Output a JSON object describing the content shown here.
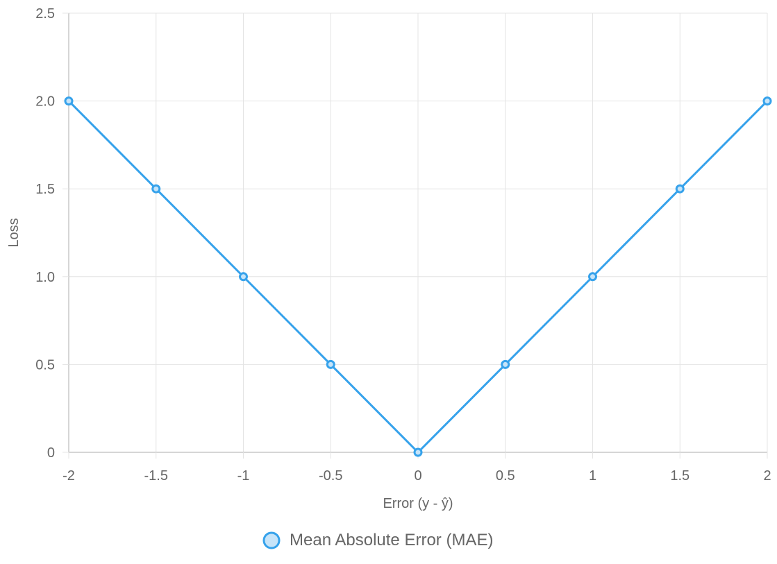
{
  "chart_data": {
    "type": "line",
    "title": "",
    "xlabel": "Error (y - ŷ)",
    "ylabel": "Loss",
    "x": [
      -2,
      -1.5,
      -1,
      -0.5,
      0,
      0.5,
      1,
      1.5,
      2
    ],
    "x_tick_labels": [
      "-2",
      "-1.5",
      "-1",
      "-0.5",
      "0",
      "0.5",
      "1",
      "1.5",
      "2"
    ],
    "y_ticks": [
      0,
      0.5,
      1.0,
      1.5,
      2.0,
      2.5
    ],
    "y_tick_labels": [
      "0",
      "0.5",
      "1.0",
      "1.5",
      "2.0",
      "2.5"
    ],
    "xlim": [
      -2,
      2
    ],
    "ylim": [
      0,
      2.5
    ],
    "grid": true,
    "legend_position": "bottom",
    "series": [
      {
        "name": "Mean Absolute Error (MAE)",
        "values": [
          2,
          1.5,
          1,
          0.5,
          0,
          0.5,
          1,
          1.5,
          2
        ],
        "color": "#36a2eb",
        "fill_color": "#c6e4f9"
      }
    ],
    "colors": {
      "grid": "#e4e4e4",
      "axis": "#c8c8c8",
      "text": "#666666"
    }
  }
}
